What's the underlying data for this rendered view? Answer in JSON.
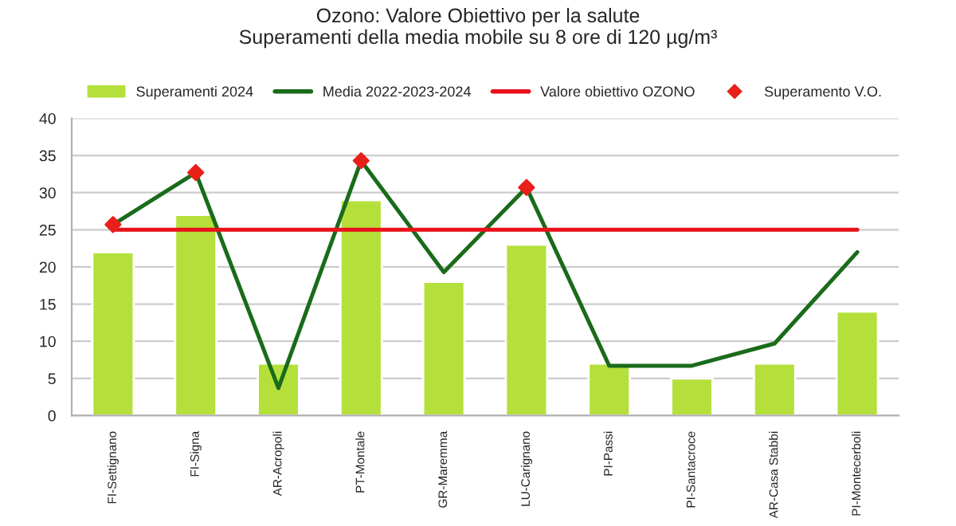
{
  "chart_data": {
    "type": "bar",
    "title": "Ozono: Valore Obiettivo per la salute\nSuperamenti della media mobile su 8 ore di 120 µg/m³",
    "categories": [
      "FI-Settignano",
      "FI-Signa",
      "AR-Acropoli",
      "PT-Montale",
      "GR-Maremma",
      "LU-Carignano",
      "PI-Passi",
      "PI-Santacroce",
      "AR-Casa Stabbi",
      "PI-Montecerboli"
    ],
    "series": [
      {
        "name": "Superamenti 2024",
        "color": "#b5e03c",
        "values": [
          22,
          27,
          7,
          29,
          18,
          23,
          7,
          5,
          7,
          14
        ]
      },
      {
        "name": "Media 2022-2023-2024",
        "type": "line",
        "color": "#1a6b1a",
        "marker": "none",
        "values": [
          25.7,
          32.7,
          3.7,
          34.3,
          19.3,
          30.7,
          6.7,
          6.7,
          9.7,
          22
        ]
      },
      {
        "name": "Valore obiettivo OZONO",
        "type": "line",
        "color": "#e8111a",
        "marker": "none",
        "values": [
          25,
          25,
          25,
          25,
          25,
          25,
          25,
          25,
          25,
          25
        ]
      },
      {
        "name": "Superamento V.O.",
        "type": "scatter",
        "color": "#e8201a",
        "marker": "diamond",
        "values": [
          25.7,
          32.7,
          null,
          34.3,
          null,
          30.7,
          null,
          null,
          null,
          null
        ]
      }
    ],
    "ylim": [
      0,
      40
    ],
    "yticks": [
      0,
      5,
      10,
      15,
      20,
      25,
      30,
      35,
      40
    ],
    "grid": "y",
    "legend": "top"
  }
}
